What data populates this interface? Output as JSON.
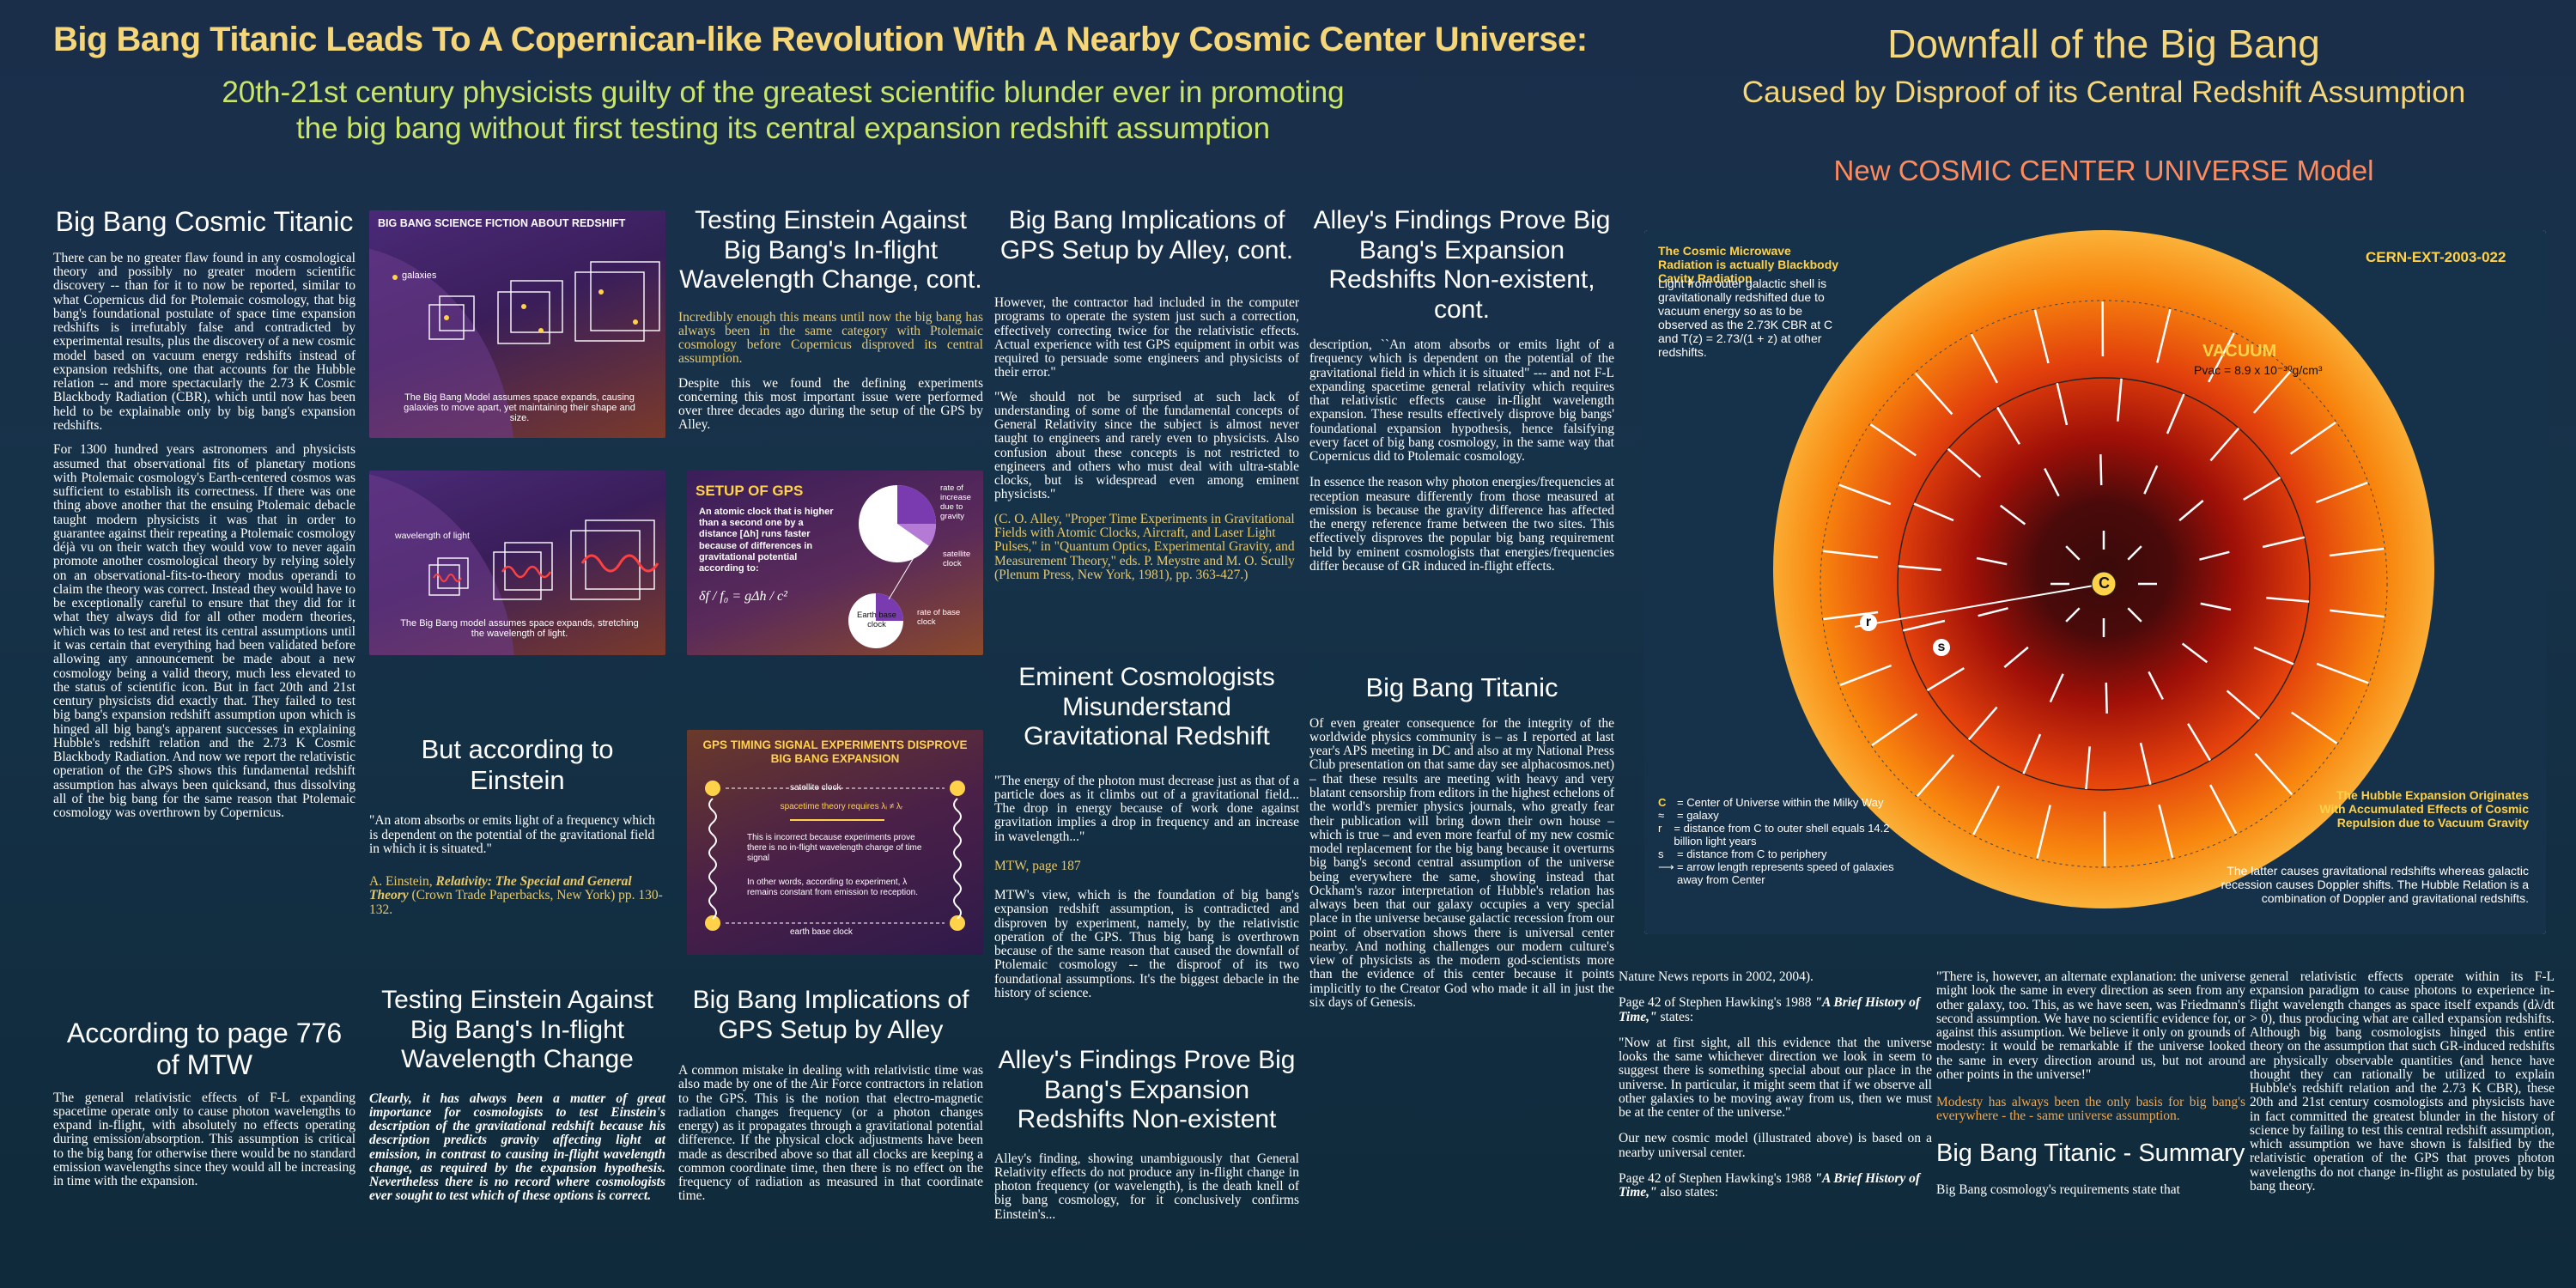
{
  "header": {
    "main_title": "Big Bang Titanic Leads To A Copernican-like Revolution With A Nearby Cosmic Center Universe:",
    "subtitle_line1": "20th-21st century physicists guilty of the greatest scientific blunder ever in promoting",
    "subtitle_line2": "the big bang without first testing its central expansion redshift assumption",
    "right_title": "Downfall of the Big Bang",
    "right_subtitle": "Caused by Disproof of its Central Redshift Assumption",
    "model_title": "New COSMIC CENTER UNIVERSE Model"
  },
  "col1": {
    "title": "Big Bang Cosmic Titanic",
    "p1": "There can be no greater flaw found in any cosmological theory and possibly no greater modern scientific discovery -- than for it to now be reported, similar to what Copernicus did for Ptolemaic cosmology, that big bang's foundational postulate of space time expansion redshifts is irrefutably false and contradicted by experimental results, plus the discovery of a new cosmic model based on vacuum energy redshifts instead of expansion redshifts, one that accounts for the Hubble relation -- and more spectacularly the 2.73 K Cosmic Blackbody Radiation (CBR), which until now has been held to be explainable only by big bang's expansion redshifts.",
    "p2": "For 1300 hundred years astronomers and physicists assumed that observational fits of planetary motions with Ptolemaic cosmology's Earth-centered cosmos was sufficient to establish its correctness. If there was one thing above another that the ensuing Ptolemaic debacle taught modern physicists it was that in order to guarantee against their repeating a Ptolemaic cosmology déjà vu on their watch they would vow to never again promote another cosmological theory by relying solely on an observational-fits-to-theory modus operandi to claim the theory was correct. Instead they would have to be exceptionally careful to ensure that they did for it what they always did for all other modern theories, which was to test and retest its central assumptions until it was certain that everything had been validated before allowing any announcement be made about a new cosmology being a valid theory, much less elevated to the status of scientific icon. But in fact 20th and 21st century physicists did exactly that. They failed to test big bang's expansion redshift assumption upon which is hinged all big bang's apparent successes in explaining Hubble's redshift relation and the 2.73 K Cosmic Blackbody Radiation. And now we report the relativistic operation of the GPS shows this fundamental redshift assumption has always been quicksand, thus dissolving all of the big bang for the same reason that Ptolemaic cosmology was overthrown by Copernicus.",
    "title2": "According to page 776 of MTW",
    "p3": "The general relativistic effects of F-L expanding spacetime operate only to cause photon wavelengths to expand in-flight, with absolutely no effects operating during emission/absorption. This assumption is critical to the big bang for otherwise there would be no standard emission wavelengths since they would all be increasing in time with the expansion."
  },
  "col2": {
    "slide1_title": "BIG BANG SCIENCE FICTION ABOUT REDSHIFT",
    "slide1_label": "galaxies",
    "slide1_caption": "The Big Bang Model assumes space expands, causing galaxies to move apart, yet maintaining their shape and size.",
    "slide2_label": "wavelength of light",
    "slide2_caption": "The Big Bang model assumes space expands, stretching the wavelength of light.",
    "title": "But according to Einstein",
    "quote": "\"An atom absorbs or emits light of a frequency which is dependent on the potential of the gravitational field in which it is situated.\"",
    "cite_a": "A. Einstein,",
    "cite_b": "Relativity: The Special and General Theory",
    "cite_c": "(Crown Trade Paperbacks, New York) pp. 130-132."
  },
  "col3": {
    "title": "Testing Einstein Against Big Bang's In-flight Wavelength Change, cont.",
    "p1": "Incredibly enough this means until now the big bang has always been in the same category with Ptolemaic cosmology before Copernicus disproved its central assumption.",
    "p2": "Despite this we found the defining experiments concerning this most important issue were performed over three decades ago during the setup of the GPS by Alley.",
    "gps_title": "SETUP OF GPS",
    "gps_text": "An atomic clock that is higher than a second one by a distance [Δh] runs faster because of differences in gravitational potential according to:",
    "gps_formula": "δf / f₀ = gΔh / c²",
    "gps_rate1": "rate of increase due to gravity",
    "gps_sat": "satellite clock",
    "gps_earth": "Earth base clock",
    "gps_rate2": "rate of base clock",
    "sig_title": "GPS TIMING SIGNAL EXPERIMENTS DISPROVE BIG BANG EXPANSION",
    "sig_sat": "satellite clock",
    "sig_pred": "spacetime theory requires λᵢ ≠ λᵣ",
    "sig_incorrect": "This is incorrect because experiments prove there is no in-flight wavelength change of time signal",
    "sig_words": "In other words, according to experiment, λ remains constant from emission to reception.",
    "sig_earth": "earth base clock",
    "title2": "Testing Einstein Against Big Bang's In-flight Wavelength Change",
    "p3": "Clearly, it has always been a matter of great importance for cosmologists to test Einstein's description of the gravitational redshift because his description predicts gravity affecting light at emission, in contrast to causing in-flight wavelength change, as required by the expansion hypothesis. Nevertheless there is no record where cosmologists ever sought to test which of these options is correct."
  },
  "col4": {
    "title": "Big Bang Implications of GPS Setup by Alley, cont.",
    "p1": "However, the contractor had included in the computer programs to operate the system just such a correction, effectively correcting twice for the relativistic effects. Actual experience with test GPS equipment in orbit was required to persuade some engineers and physicists of their error.\"",
    "p2": "\"We should not be surprised at such lack of understanding of some of the fundamental concepts of General Relativity since the subject is almost never taught to engineers and rarely even to physicists. Also confusion about these concepts is not restricted to engineers and others who must deal with ultra-stable clocks, but is widespread even among eminent physicists.\"",
    "cite": "(C. O. Alley, \"Proper Time Experiments in Gravitational Fields with Atomic Clocks, Aircraft, and Laser Light Pulses,\" in \"Quantum Optics, Experimental Gravity, and Measurement Theory,\" eds. P. Meystre and M. O. Scully (Plenum Press, New York, 1981), pp. 363-427.)",
    "title2": "Eminent Cosmologists Misunderstand Gravitational Redshift",
    "p3": "\"The energy of the photon must decrease just as that of a particle does as it climbs out of a gravitational field... The drop in energy because of work done against gravitation implies a drop in frequency and an increase in wavelength...\"",
    "mtw": "MTW, page 187",
    "p4": "MTW's view, which is the foundation of big bang's expansion redshift assumption, is contradicted and disproven by experiment, namely, by the relativistic operation of the GPS. Thus big bang is overthrown because of the same reason that caused the downfall of Ptolemaic cosmology -- the disproof of its two foundational assumptions. It's the biggest debacle in the history of science.",
    "title3": "Big Bang Implications of GPS Setup by Alley",
    "p5": "A common mistake in dealing with relativistic time was also made by one of the Air Force contractors in relation to the GPS. This is the notion that electro-magnetic radiation changes frequency (or a photon changes energy) as it propagates through a gravitational potential difference. If the physical clock adjustments have been made as described above so that all clocks are keeping a common coordinate time, then there is no effect on the frequency of radiation as measured in that coordinate time."
  },
  "col5": {
    "title": "Alley's Findings Prove Big Bang's Expansion Redshifts Non-existent, cont.",
    "p1": "description, ``An atom absorbs or emits light of a frequency which is dependent on the potential of the gravitational field in which it is situated\" --- and not F-L expanding spacetime general relativity which requires that relativistic effects cause in-flight wavelength expansion. These results effectively disprove big bangs' foundational expansion hypothesis, hence falsifying every facet of big bang cosmology, in the same way that Copernicus did to Ptolemaic cosmology.",
    "p2": "In essence the reason why photon energies/frequencies at reception measure differently from those measured at emission is because the gravity difference has affected the energy reference frame between the two sites. This effectively disproves the popular big bang requirement held by eminent cosmologists that energies/frequencies differ because of GR induced in-flight effects.",
    "title2": "Big Bang Titanic",
    "p3": "Of even greater consequence for the integrity of the worldwide physics community is – as I reported at last year's APS meeting in DC and also at my National Press Club presentation on that same day see alphacosmos.net) – that these results are meeting with heavy and very blatant censorship from editors in the highest echelons of the world's premier physics journals, who greatly fear their publication will bring down their own house – which is true – and even more fearful of my new cosmic model replacement for the big bang because it overturns big bang's second central assumption of the universe being everywhere the same, showing instead that Ockham's razor interpretation of Hubble's relation has always been that our galaxy occupies a very special place in the universe because galactic recession from our point of observation shows there is universal center nearby. And nothing challenges our modern culture's view of physicists as the modern god-scientists more than the evidence of this center because it points implicitly to the Creator God who made it all in just the six days of Genesis.",
    "title3": "Alley's Findings Prove Big Bang's Expansion Redshifts Non-existent",
    "p4": "Alley's finding, showing unambiguously that General Relativity effects do not produce any in-flight change in photon frequency (or wavelength), is the death knell of big bang cosmology, for it conclusively confirms Einstein's..."
  },
  "diagram": {
    "cmb_title": "The Cosmic Microwave Radiation is actually Blackbody Cavity Radiation",
    "cmb_text": "Light from outer galactic shell is gravitationally redshifted due to vacuum energy so as to be observed as the 2.73K CBR at C and T(z) = 2.73/(1 + z) at other redshifts.",
    "cern": "CERN-EXT-2003-022",
    "vacuum": "VACUUM",
    "pvac": "Pvac = 8.9 x 10⁻³⁰g/cm³",
    "center_label": "C",
    "r_label": "r",
    "s_label": "s",
    "legend": [
      {
        "key": "C",
        "text": "= Center of Universe within the Milky Way"
      },
      {
        "key": "≈",
        "text": "= galaxy"
      },
      {
        "key": "r",
        "text": "= distance from C to outer shell equals 14.2 billion light years"
      },
      {
        "key": "s",
        "text": "= distance from C to periphery"
      },
      {
        "key": "⟶",
        "text": "= arrow length represents speed of galaxies away from Center"
      }
    ],
    "hubble_title": "The Hubble Expansion Originates With Accumulated Effects of Cosmic Repulsion due to Vacuum Gravity",
    "hubble_text": "The latter causes gravitational redshifts whereas galactic recession causes Doppler shifts. The Hubble Relation is a combination of Doppler and gravitational redshifts."
  },
  "bottom": {
    "c1_p1": "Nature News reports in 2002, 2004).",
    "c1_p2a": "Page 42 of Stephen Hawking's 1988",
    "c1_p2b": "\"A Brief History of Time,\"",
    "c1_p2c": "states:",
    "c1_q": "\"Now at first sight, all this evidence that the universe looks the same whichever direction we look in seem to suggest there is something special about our place in the universe. In particular, it might seem that if we observe all other galaxies to be moving away from us, then we must be at the center of the universe.\"",
    "c1_p3": "Our new cosmic model (illustrated above) is based on a nearby universal center.",
    "c1_p4a": "Page 42 of Stephen Hawking's 1988",
    "c1_p4b": "\"A Brief History of Time,\"",
    "c1_p4c": "also states:",
    "c2_q": "\"There is, however, an alternate explanation: the universe might look the same in every direction as seen from any other galaxy, too. This, as we have seen, was Friedmann's second assumption. We have no scientific evidence for, or against this assumption. We believe it only on grounds of modesty: it would be remarkable if the universe looked the same in every direction around us, but not around other points in the universe!\"",
    "c2_y": "Modesty has always been the only basis for big bang's everywhere - the - same universe assumption.",
    "c2_title": "Big Bang Titanic - Summary",
    "c2_p": "Big Bang cosmology's requirements state that",
    "c3_p": "general relativistic effects operate within its F-L expansion paradigm to cause photons to experience in-flight wavelength changes as space itself expands (dλ/dt > 0), thus producing what are called expansion redshifts. Although big bang cosmologists hinged this entire theory on the assumption that such GR-induced redshifts are physically observable quantities (and hence have thought they can rationally be utilized to explain Hubble's redshift relation and the 2.73 K CBR), these 20th and 21st century cosmologists and physicists have in fact committed the greatest blunder in the history of science by failing to test this central redshift assumption, which assumption we have shown is falsified by the relativistic operation of the GPS that proves photon wavelengths do not change in-flight as postulated by big bang theory."
  },
  "colors": {
    "accent": "#f5d77a",
    "title_green": "#e8e47a",
    "orange": "#ff8a5c",
    "sub_green": "#c9e56b"
  }
}
